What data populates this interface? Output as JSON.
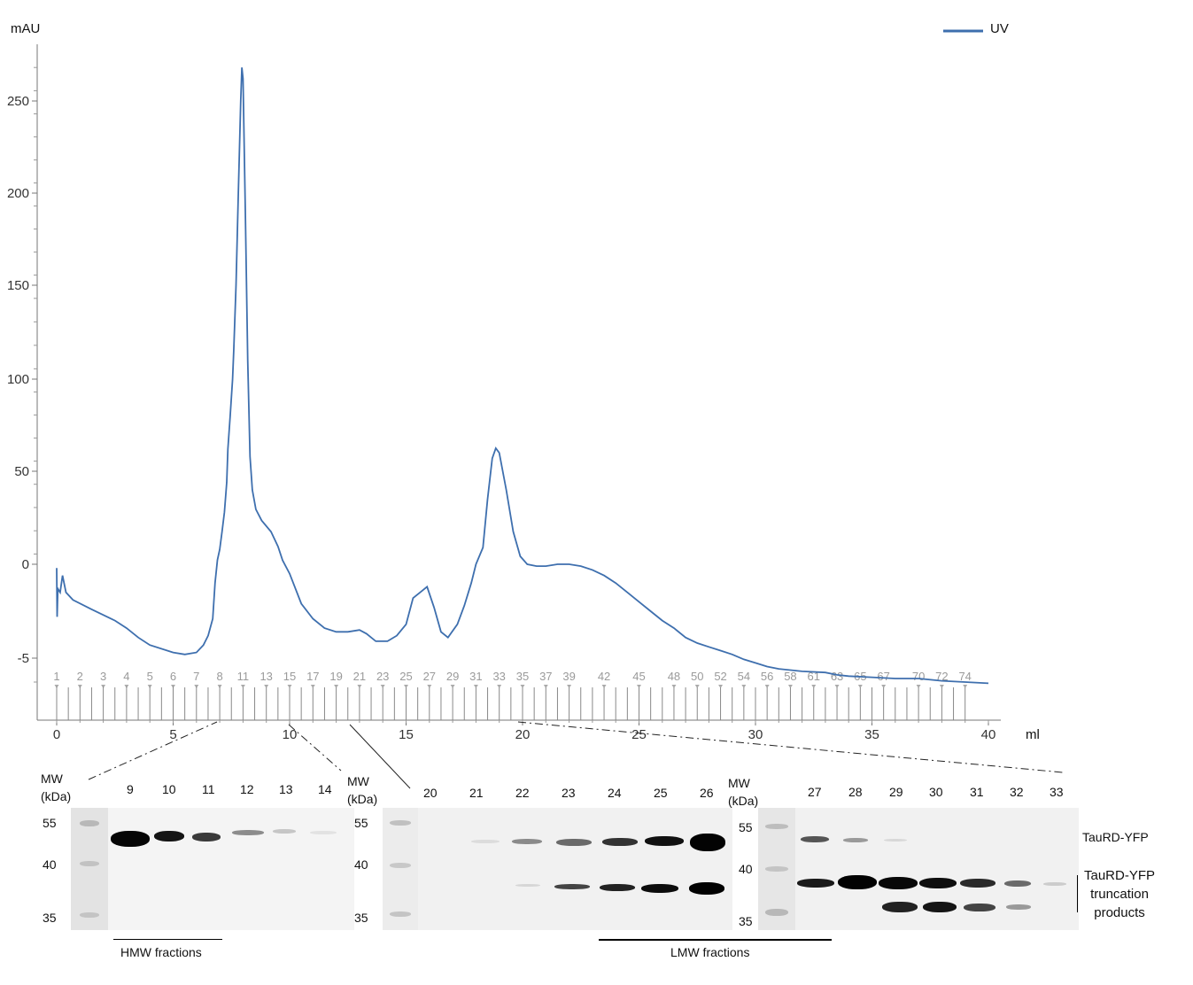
{
  "chart_data": {
    "type": "line",
    "ylabel": "mAU",
    "xlabel": "ml",
    "y_ticks": [
      "250",
      "200",
      "150",
      "100",
      "50",
      "0",
      "-5"
    ],
    "x_ticks": [
      "0",
      "5",
      "10",
      "15",
      "20",
      "25",
      "30",
      "35",
      "40"
    ],
    "xlim": [
      0,
      40.5
    ],
    "legend": {
      "label": "UV",
      "position": "top-right",
      "color": "#3e6fae"
    },
    "series": [
      {
        "name": "UV",
        "points": [
          [
            0.0,
            -0.2
          ],
          [
            0.02,
            -2.8
          ],
          [
            0.05,
            -1.3
          ],
          [
            0.15,
            -1.5
          ],
          [
            0.25,
            -0.6
          ],
          [
            0.4,
            -1.5
          ],
          [
            0.7,
            -1.9
          ],
          [
            1.5,
            -2.4
          ],
          [
            2.5,
            -3.0
          ],
          [
            3.0,
            -3.4
          ],
          [
            3.5,
            -3.9
          ],
          [
            4.0,
            -4.3
          ],
          [
            5.0,
            -4.7
          ],
          [
            5.5,
            -4.8
          ],
          [
            6.0,
            -4.7
          ],
          [
            6.3,
            -4.3
          ],
          [
            6.5,
            -3.8
          ],
          [
            6.7,
            -2.9
          ],
          [
            6.8,
            -1.0
          ],
          [
            6.9,
            2.3
          ],
          [
            7.0,
            8.0
          ],
          [
            7.1,
            17.5
          ],
          [
            7.2,
            28.0
          ],
          [
            7.3,
            44.0
          ],
          [
            7.35,
            62.0
          ],
          [
            7.45,
            80.0
          ],
          [
            7.55,
            100.0
          ],
          [
            7.6,
            115.0
          ],
          [
            7.7,
            150.0
          ],
          [
            7.8,
            200.0
          ],
          [
            7.9,
            250.0
          ],
          [
            7.95,
            268.0
          ],
          [
            8.0,
            262.0
          ],
          [
            8.1,
            190.0
          ],
          [
            8.2,
            110.0
          ],
          [
            8.3,
            58.0
          ],
          [
            8.4,
            40.0
          ],
          [
            8.55,
            29.5
          ],
          [
            8.8,
            23.5
          ],
          [
            9.2,
            17.5
          ],
          [
            9.5,
            9.5
          ],
          [
            9.7,
            2.1
          ],
          [
            10.0,
            -0.5
          ],
          [
            10.5,
            -2.1
          ],
          [
            11.0,
            -2.9
          ],
          [
            11.5,
            -3.4
          ],
          [
            12.0,
            -3.6
          ],
          [
            12.5,
            -3.6
          ],
          [
            13.0,
            -3.5
          ],
          [
            13.3,
            -3.7
          ],
          [
            13.7,
            -4.1
          ],
          [
            14.2,
            -4.1
          ],
          [
            14.6,
            -3.8
          ],
          [
            15.0,
            -3.2
          ],
          [
            15.3,
            -1.8
          ],
          [
            15.6,
            -1.5
          ],
          [
            15.9,
            -1.2
          ],
          [
            16.2,
            -2.3
          ],
          [
            16.5,
            -3.6
          ],
          [
            16.8,
            -3.9
          ],
          [
            17.2,
            -3.2
          ],
          [
            17.5,
            -2.2
          ],
          [
            17.8,
            -1.0
          ],
          [
            18.0,
            0.0
          ],
          [
            18.3,
            9.0
          ],
          [
            18.5,
            35.0
          ],
          [
            18.7,
            57.0
          ],
          [
            18.85,
            62.5
          ],
          [
            19.0,
            60.0
          ],
          [
            19.3,
            40.0
          ],
          [
            19.6,
            17.5
          ],
          [
            19.9,
            4.3
          ],
          [
            20.2,
            0.0
          ],
          [
            20.6,
            -0.1
          ],
          [
            21.0,
            -0.1
          ],
          [
            21.5,
            0.0
          ],
          [
            22.0,
            0.0
          ],
          [
            22.5,
            -0.1
          ],
          [
            23.0,
            -0.3
          ],
          [
            23.5,
            -0.6
          ],
          [
            24.0,
            -1.0
          ],
          [
            24.5,
            -1.5
          ],
          [
            25.0,
            -2.0
          ],
          [
            25.5,
            -2.5
          ],
          [
            26.0,
            -3.0
          ],
          [
            26.5,
            -3.4
          ],
          [
            27.0,
            -3.9
          ],
          [
            27.5,
            -4.2
          ],
          [
            28.0,
            -4.4
          ],
          [
            28.5,
            -4.6
          ],
          [
            29.0,
            -4.8
          ],
          [
            29.5,
            -5.1
          ],
          [
            30.0,
            -5.4
          ],
          [
            30.5,
            -5.7
          ],
          [
            31.0,
            -5.9
          ],
          [
            32.0,
            -6.1
          ],
          [
            33.0,
            -6.2
          ],
          [
            33.5,
            -6.4
          ],
          [
            34.0,
            -6.5
          ],
          [
            35.0,
            -6.6
          ],
          [
            36.0,
            -6.7
          ],
          [
            37.0,
            -6.7
          ],
          [
            38.0,
            -6.9
          ],
          [
            39.0,
            -7.0
          ],
          [
            40.0,
            -7.1
          ]
        ]
      }
    ],
    "fractions": {
      "labels": [
        "1",
        "2",
        "3",
        "4",
        "5",
        "6",
        "7",
        "8",
        "11",
        "13",
        "15",
        "17",
        "19",
        "21",
        "23",
        "25",
        "27",
        "29",
        "31",
        "33",
        "35",
        "37",
        "39",
        "42",
        "45",
        "48",
        "50",
        "52",
        "54",
        "56",
        "58",
        "61",
        "63",
        "65",
        "67",
        "70",
        "72",
        "74"
      ],
      "label_x_ml": [
        0,
        1,
        2,
        3,
        4,
        5,
        6,
        7,
        8,
        9,
        10,
        11,
        12,
        13,
        14,
        15,
        16,
        17,
        18,
        19,
        20,
        21,
        22,
        23.5,
        25,
        26.5,
        27.5,
        28.5,
        29.5,
        30.5,
        31.5,
        32.5,
        33.5,
        34.5,
        35.5,
        37,
        38,
        39
      ]
    }
  },
  "gels": {
    "panel1": {
      "mw_label": "MW\n(kDa)",
      "mw_markers": [
        "55",
        "40",
        "35"
      ],
      "lanes": [
        "9",
        "10",
        "11",
        "12",
        "13",
        "14"
      ],
      "bracket_label": "HMW fractions"
    },
    "panel2": {
      "mw_label": "MW\n(kDa)",
      "mw_markers": [
        "55",
        "40",
        "35"
      ],
      "lanes": [
        "20",
        "21",
        "22",
        "23",
        "24",
        "25",
        "26"
      ]
    },
    "panel3": {
      "mw_label": "MW\n(kDa)",
      "mw_markers": [
        "55",
        "40",
        "35"
      ],
      "lanes": [
        "27",
        "28",
        "29",
        "30",
        "31",
        "32",
        "33"
      ]
    },
    "lmw_label": "LMW fractions",
    "annotations": {
      "full_length": "TauRD-YFP",
      "truncation": "TauRD-YFP\ntruncation\nproducts"
    }
  }
}
